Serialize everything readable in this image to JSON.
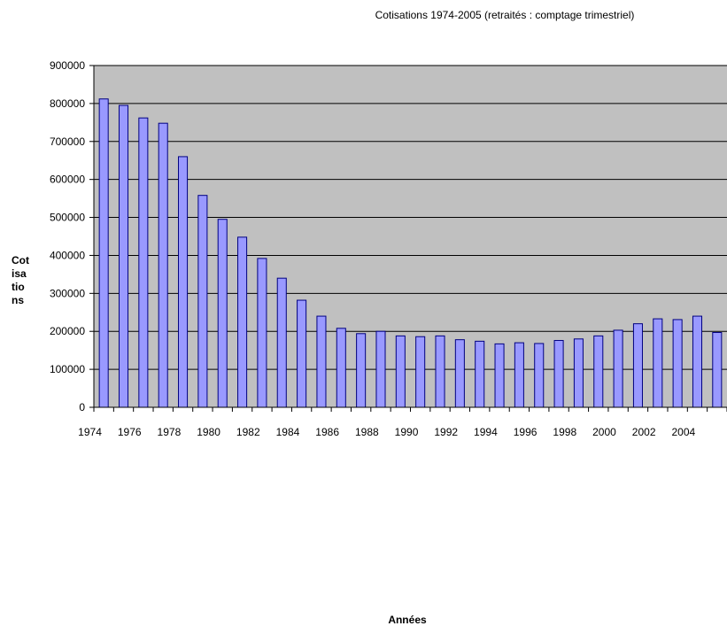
{
  "chart_data": {
    "type": "bar",
    "title": "Cotisations 1974-2005 (retraités : comptage trimestriel)",
    "xlabel": "Années",
    "ylabel_lines": [
      "Cot",
      "isa",
      "tio",
      "ns"
    ],
    "ylim": [
      0,
      900000
    ],
    "yticks": [
      0,
      100000,
      200000,
      300000,
      400000,
      500000,
      600000,
      700000,
      800000,
      900000
    ],
    "xtick_labels": [
      "1974",
      "1976",
      "1978",
      "1980",
      "1982",
      "1984",
      "1986",
      "1988",
      "1990",
      "1992",
      "1994",
      "1996",
      "1998",
      "2000",
      "2002",
      "2004"
    ],
    "grid": true,
    "legend": "none",
    "colors": {
      "bar_fill": "#9999ff",
      "bar_stroke": "#000080",
      "plot_bg": "#c0c0c0",
      "grid": "#000000"
    },
    "categories": [
      "1974",
      "1975",
      "1976",
      "1977",
      "1978",
      "1979",
      "1980",
      "1981",
      "1982",
      "1983",
      "1984",
      "1985",
      "1986",
      "1987",
      "1988",
      "1989",
      "1990",
      "1991",
      "1992",
      "1993",
      "1994",
      "1995",
      "1996",
      "1997",
      "1998",
      "1999",
      "2000",
      "2001",
      "2002",
      "2003",
      "2004",
      "2005"
    ],
    "values": [
      812000,
      795000,
      762000,
      748000,
      660000,
      558000,
      495000,
      448000,
      392000,
      340000,
      282000,
      240000,
      208000,
      194000,
      200000,
      188000,
      186000,
      188000,
      178000,
      174000,
      167000,
      170000,
      168000,
      176000,
      180000,
      188000,
      203000,
      220000,
      233000,
      231000,
      240000,
      197000
    ]
  }
}
